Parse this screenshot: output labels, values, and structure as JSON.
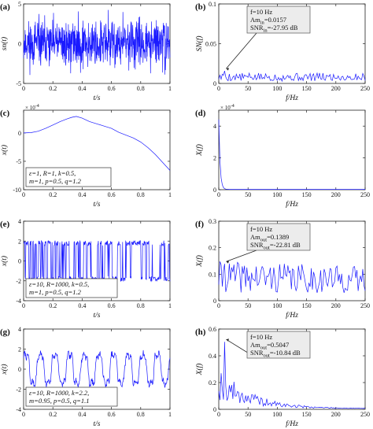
{
  "chart_data": [
    {
      "type": "line",
      "letter": "(a)",
      "ylabel": "sn(t)",
      "xlabel": "t/s",
      "xlim": [
        0,
        1
      ],
      "ylim": [
        -5,
        5
      ],
      "xticks": [
        "0",
        "0.2",
        "0.4",
        "0.6",
        "0.8",
        "1"
      ],
      "yticks": [
        "5",
        "0",
        "-5"
      ],
      "signal": "noise",
      "series": [
        {
          "amplitude": 2.3,
          "n": 700,
          "seed": 11
        }
      ]
    },
    {
      "type": "line",
      "letter": "(b)",
      "ylabel": "SN(f)",
      "xlabel": "f/Hz",
      "xlim": [
        0,
        250
      ],
      "ylim": [
        0,
        0.1
      ],
      "xticks": [
        "0",
        "50",
        "100",
        "150",
        "200",
        "250"
      ],
      "yticks": [
        "0.1",
        "0.05",
        "0"
      ],
      "signal": "spectrum",
      "series": [
        {
          "floor": 0.008,
          "peak_x": 10,
          "peak_y": 0.0157,
          "n": 125,
          "seed": 5
        }
      ],
      "annotation": {
        "line1": "f=10 Hz",
        "line2_base": "Am",
        "line2_sub": "in",
        "line2_val": "=0.0157",
        "line3_base": "SNR",
        "line3_sub": "in",
        "line3_val": "=-27.95 dB",
        "target": [
          10,
          0.0157
        ]
      }
    },
    {
      "type": "line",
      "letter": "(c)",
      "ylabel": "x(t)",
      "xlabel": "t/s",
      "xlim": [
        0,
        1
      ],
      "ylim": [
        -10,
        4
      ],
      "yexp": "× 10",
      "yexp_sup": "-4",
      "xticks": [
        "0",
        "0.2",
        "0.4",
        "0.6",
        "0.8",
        "1"
      ],
      "yticks": [
        "0",
        "-5",
        "-10"
      ],
      "signal": "curve",
      "series": [
        {
          "x": [
            0,
            0.05,
            0.1,
            0.15,
            0.2,
            0.25,
            0.3,
            0.33,
            0.36,
            0.4,
            0.45,
            0.5,
            0.55,
            0.6,
            0.65,
            0.7,
            0.75,
            0.8,
            0.85,
            0.9,
            0.95,
            1.0
          ],
          "y": [
            0,
            0.05,
            0.3,
            0.8,
            1.4,
            2.0,
            2.5,
            2.75,
            2.9,
            2.6,
            2.0,
            1.6,
            1.2,
            0.8,
            0.1,
            -0.4,
            -0.9,
            -1.6,
            -2.6,
            -3.8,
            -5.2,
            -6.6
          ]
        }
      ],
      "params": {
        "line1": "ε=1, R=1, k=0.5,",
        "line2": "m=1, p=0.5, q=1.2"
      }
    },
    {
      "type": "line",
      "letter": "(d)",
      "ylabel": "X(f)",
      "xlabel": "f/Hz",
      "xlim": [
        0,
        250
      ],
      "ylim": [
        0,
        5
      ],
      "yexp": "× 10",
      "yexp_sup": "-4",
      "xticks": [
        "0",
        "50",
        "100",
        "150",
        "200",
        "250"
      ],
      "yticks": [
        "4",
        "2",
        "0"
      ],
      "signal": "decay",
      "series": [
        {
          "start": 4.4,
          "n": 125
        }
      ]
    },
    {
      "type": "line",
      "letter": "(e)",
      "ylabel": "x(t)",
      "xlabel": "t/s",
      "xlim": [
        0,
        1
      ],
      "ylim": [
        -4,
        4
      ],
      "xticks": [
        "0",
        "0.2",
        "0.4",
        "0.6",
        "0.8",
        "1"
      ],
      "yticks": [
        "4",
        "2",
        "0",
        "-2",
        "-4"
      ],
      "signal": "bistable",
      "series": [
        {
          "level": 1.8,
          "n": 380,
          "seed": 23
        }
      ],
      "params": {
        "line1": "ε=10, R=1000, k=0.5,",
        "line2": "m=1, p=0.5, q=1.2"
      }
    },
    {
      "type": "line",
      "letter": "(f)",
      "ylabel": "X(f)",
      "xlabel": "f/Hz",
      "xlim": [
        0,
        250
      ],
      "ylim": [
        0,
        0.3
      ],
      "xticks": [
        "0",
        "50",
        "100",
        "150",
        "200",
        "250"
      ],
      "yticks": [
        "0.3",
        "0.2",
        "0.1",
        "0"
      ],
      "signal": "spectrum",
      "series": [
        {
          "floor": 0.09,
          "peak_x": 10,
          "peak_y": 0.1389,
          "n": 125,
          "seed": 41,
          "slope": 0.00018
        }
      ],
      "annotation": {
        "line1": "f=10 Hz",
        "line2_base": "Am",
        "line2_sub": "out",
        "line2_val": "=0.1389",
        "line3_base": "SNR",
        "line3_sub": "out",
        "line3_val": "=-22.81 dB",
        "target": [
          10,
          0.1389
        ]
      }
    },
    {
      "type": "line",
      "letter": "(g)",
      "ylabel": "x(t)",
      "xlabel": "t/s",
      "xlim": [
        0,
        1
      ],
      "ylim": [
        -4,
        4
      ],
      "xticks": [
        "0",
        "0.2",
        "0.4",
        "0.6",
        "0.8",
        "1"
      ],
      "yticks": [
        "4",
        "2",
        "0",
        "-2",
        "-4"
      ],
      "signal": "periodic",
      "series": [
        {
          "level": 1.4,
          "freq": 10,
          "n": 400,
          "seed": 7
        }
      ],
      "params": {
        "line1": "ε=10, R=1000, k=2.2,",
        "line2": "m=0.95, p=0.5, q=1.1"
      }
    },
    {
      "type": "line",
      "letter": "(h)",
      "ylabel": "X(f)",
      "xlabel": "f/Hz",
      "xlim": [
        0,
        250
      ],
      "ylim": [
        0,
        0.6
      ],
      "xticks": [
        "0",
        "50",
        "100",
        "150",
        "200",
        "250"
      ],
      "yticks": [
        "0.6",
        "0.4",
        "0.2",
        "0"
      ],
      "signal": "spectrum_decay",
      "series": [
        {
          "peak_x": 10,
          "peak_y": 0.5047,
          "n": 125,
          "seed": 19
        }
      ],
      "annotation": {
        "line1": "f=10 Hz",
        "line2_base": "Am",
        "line2_sub": "out",
        "line2_val": "=0.5047",
        "line3_base": "SNR",
        "line3_sub": "out",
        "line3_val": "=-10.84 dB",
        "target": [
          10,
          0.5047
        ]
      }
    }
  ]
}
